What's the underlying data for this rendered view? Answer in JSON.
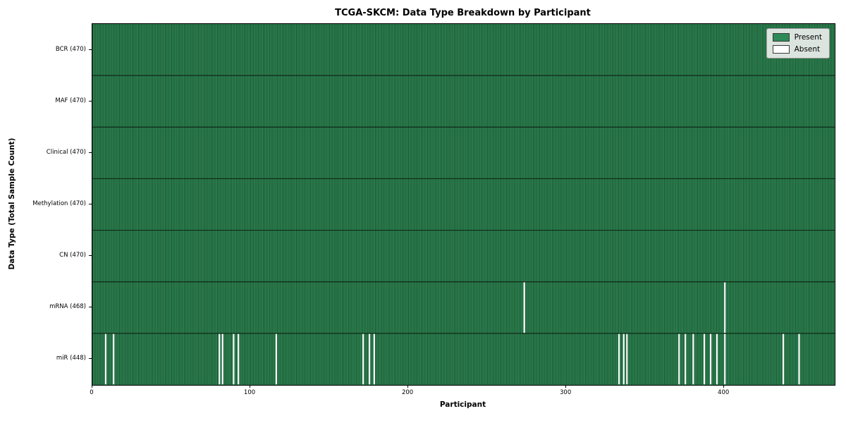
{
  "chart_data": {
    "type": "heatmap",
    "title": "TCGA-SKCM: Data Type Breakdown by Participant",
    "xlabel": "Participant",
    "ylabel": "Data Type (Total Sample Count)",
    "n_participants": 470,
    "x_ticks": [
      0,
      100,
      200,
      300,
      400
    ],
    "legend_position": "upper right",
    "rows": [
      {
        "label": "BCR (470)",
        "total": 470,
        "absent": []
      },
      {
        "label": "MAF (470)",
        "total": 470,
        "absent": []
      },
      {
        "label": "Clinical (470)",
        "total": 470,
        "absent": []
      },
      {
        "label": "Methylation (470)",
        "total": 470,
        "absent": []
      },
      {
        "label": "CN (470)",
        "total": 470,
        "absent": []
      },
      {
        "label": "mRNA (468)",
        "total": 468,
        "absent": [
          273,
          400
        ]
      },
      {
        "label": "miR (448)",
        "total": 448,
        "absent": [
          8,
          13,
          80,
          82,
          89,
          92,
          116,
          171,
          175,
          178,
          333,
          336,
          338,
          371,
          375,
          380,
          387,
          391,
          395,
          400,
          437,
          447
        ]
      }
    ],
    "legend": [
      {
        "label": "Present",
        "color": "#2e8b57"
      },
      {
        "label": "Absent",
        "color": "#ffffff"
      }
    ],
    "colors": {
      "present": "#2e8b57",
      "edge": "#16381f",
      "row_separator": "#0f2918",
      "absent": "#ffffff"
    }
  }
}
